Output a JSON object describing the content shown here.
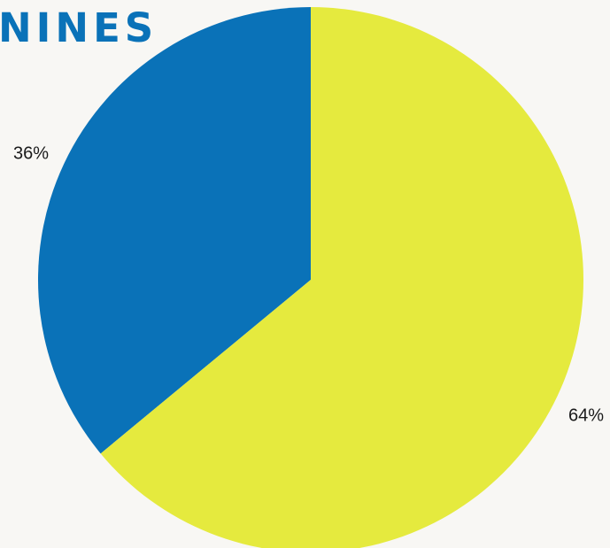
{
  "chart_data": {
    "type": "pie",
    "title": "NINES",
    "slices": [
      {
        "label": "36%",
        "value": 36,
        "color": "#0a72b8"
      },
      {
        "label": "64%",
        "value": 64,
        "color": "#e5ea3e"
      }
    ]
  }
}
